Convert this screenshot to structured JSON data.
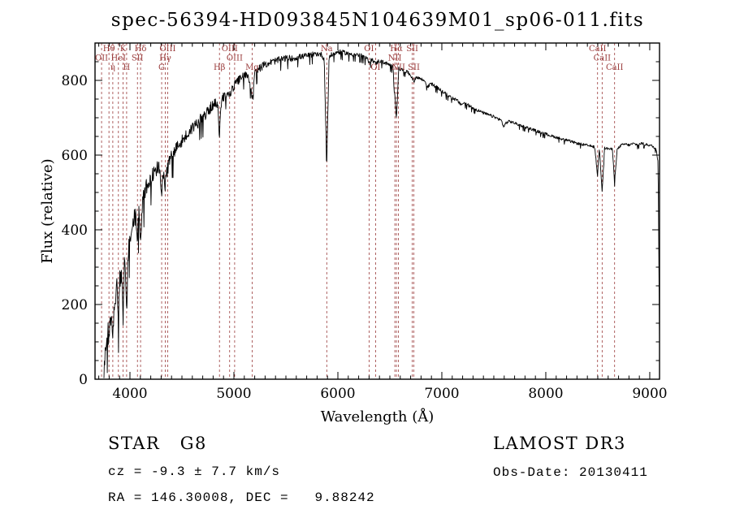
{
  "title": "spec-56394-HD093845N104639M01_sp06-011.fits",
  "footer": {
    "class_label": "STAR   G8",
    "survey": "LAMOST DR3",
    "cz": "cz = -9.3 ± 7.7 km/s",
    "obs_date": "Obs-Date: 20130411",
    "radec": "RA = 146.30008, DEC =   9.88242"
  },
  "chart_data": {
    "type": "line",
    "title": "spec-56394-HD093845N104639M01_sp06-011.fits",
    "xlabel": "Wavelength (Å)",
    "ylabel": "Flux (relative)",
    "xlim": [
      3664,
      9094
    ],
    "ylim": [
      0,
      900
    ],
    "x_ticks": [
      4000,
      5000,
      6000,
      7000,
      8000,
      9000
    ],
    "y_ticks": [
      0,
      200,
      400,
      600,
      800
    ],
    "x_minor_step": 100,
    "y_minor_step": 50,
    "grid": false,
    "line_color": "#000000",
    "marker_color": "#9a3b3b",
    "noise": {
      "base": 5.5,
      "blue_amp": 55,
      "decay": 950
    },
    "spectral_lines": [
      {
        "wavelength": 3727,
        "label": "OII",
        "row": 2
      },
      {
        "wavelength": 3798,
        "label": "Hθ",
        "row": 1
      },
      {
        "wavelength": 3835,
        "label": "η",
        "row": 3
      },
      {
        "wavelength": 3889,
        "label": "HeI",
        "row": 2
      },
      {
        "wavelength": 3933,
        "label": "K",
        "row": 1
      },
      {
        "wavelength": 3968,
        "label": "H",
        "row": 3
      },
      {
        "wavelength": 4072,
        "label": "SII",
        "row": 2
      },
      {
        "wavelength": 4102,
        "label": "Hδ",
        "row": 1
      },
      {
        "wavelength": 4305,
        "label": "G",
        "row": 3
      },
      {
        "wavelength": 4340,
        "label": "Hγ",
        "row": 2
      },
      {
        "wavelength": 4363,
        "label": "OIII",
        "row": 1
      },
      {
        "wavelength": 4861,
        "label": "Hβ",
        "row": 3
      },
      {
        "wavelength": 4959,
        "label": "OIII",
        "row": 1
      },
      {
        "wavelength": 5007,
        "label": "OIII",
        "row": 2
      },
      {
        "wavelength": 5175,
        "label": "Mg",
        "row": 3
      },
      {
        "wavelength": 5893,
        "label": "Na",
        "row": 1
      },
      {
        "wavelength": 6300,
        "label": "OI",
        "row": 1
      },
      {
        "wavelength": 6363,
        "label": "OI",
        "row": 3
      },
      {
        "wavelength": 6548,
        "label": "NII",
        "row": 2
      },
      {
        "wavelength": 6563,
        "label": "Hα",
        "row": 1
      },
      {
        "wavelength": 6583,
        "label": "NII",
        "row": 3
      },
      {
        "wavelength": 6716,
        "label": "SII",
        "row": 1
      },
      {
        "wavelength": 6731,
        "label": "SII",
        "row": 3
      },
      {
        "wavelength": 8498,
        "label": "CaII",
        "row": 1
      },
      {
        "wavelength": 8542,
        "label": "CaII",
        "row": 2
      },
      {
        "wavelength": 8662,
        "label": "CaII",
        "row": 3
      }
    ],
    "spectrum": [
      [
        3750,
        15
      ],
      [
        3762,
        70
      ],
      [
        3775,
        120
      ],
      [
        3788,
        150
      ],
      [
        3798,
        115
      ],
      [
        3810,
        170
      ],
      [
        3822,
        190
      ],
      [
        3835,
        130
      ],
      [
        3848,
        210
      ],
      [
        3862,
        230
      ],
      [
        3875,
        245
      ],
      [
        3889,
        175
      ],
      [
        3902,
        265
      ],
      [
        3915,
        285
      ],
      [
        3926,
        270
      ],
      [
        3933,
        125
      ],
      [
        3944,
        300
      ],
      [
        3956,
        310
      ],
      [
        3968,
        165
      ],
      [
        3980,
        340
      ],
      [
        3995,
        370
      ],
      [
        4010,
        405
      ],
      [
        4025,
        425
      ],
      [
        4040,
        445
      ],
      [
        4055,
        435
      ],
      [
        4072,
        390
      ],
      [
        4088,
        450
      ],
      [
        4102,
        355
      ],
      [
        4118,
        465
      ],
      [
        4135,
        495
      ],
      [
        4155,
        515
      ],
      [
        4175,
        530
      ],
      [
        4200,
        545
      ],
      [
        4225,
        555
      ],
      [
        4250,
        565
      ],
      [
        4275,
        572
      ],
      [
        4290,
        552
      ],
      [
        4305,
        495
      ],
      [
        4320,
        548
      ],
      [
        4340,
        515
      ],
      [
        4355,
        560
      ],
      [
        4375,
        580
      ],
      [
        4400,
        600
      ],
      [
        4430,
        615
      ],
      [
        4460,
        628
      ],
      [
        4490,
        638
      ],
      [
        4520,
        646
      ],
      [
        4550,
        656
      ],
      [
        4580,
        668
      ],
      [
        4610,
        678
      ],
      [
        4640,
        686
      ],
      [
        4670,
        694
      ],
      [
        4700,
        702
      ],
      [
        4730,
        712
      ],
      [
        4760,
        722
      ],
      [
        4790,
        734
      ],
      [
        4820,
        740
      ],
      [
        4845,
        728
      ],
      [
        4861,
        655
      ],
      [
        4880,
        748
      ],
      [
        4905,
        760
      ],
      [
        4930,
        768
      ],
      [
        4959,
        760
      ],
      [
        4985,
        778
      ],
      [
        5010,
        790
      ],
      [
        5040,
        800
      ],
      [
        5070,
        808
      ],
      [
        5100,
        814
      ],
      [
        5130,
        818
      ],
      [
        5155,
        795
      ],
      [
        5175,
        752
      ],
      [
        5200,
        820
      ],
      [
        5230,
        830
      ],
      [
        5260,
        836
      ],
      [
        5290,
        842
      ],
      [
        5320,
        846
      ],
      [
        5360,
        850
      ],
      [
        5400,
        853
      ],
      [
        5440,
        856
      ],
      [
        5480,
        859
      ],
      [
        5520,
        861
      ],
      [
        5560,
        859
      ],
      [
        5600,
        862
      ],
      [
        5640,
        864
      ],
      [
        5680,
        866
      ],
      [
        5720,
        868
      ],
      [
        5760,
        870
      ],
      [
        5800,
        872
      ],
      [
        5840,
        870
      ],
      [
        5868,
        858
      ],
      [
        5893,
        575
      ],
      [
        5915,
        864
      ],
      [
        5945,
        870
      ],
      [
        5975,
        874
      ],
      [
        6005,
        877
      ],
      [
        6040,
        876
      ],
      [
        6080,
        874
      ],
      [
        6120,
        872
      ],
      [
        6160,
        870
      ],
      [
        6200,
        868
      ],
      [
        6240,
        865
      ],
      [
        6270,
        861
      ],
      [
        6300,
        851
      ],
      [
        6330,
        857
      ],
      [
        6363,
        845
      ],
      [
        6395,
        853
      ],
      [
        6430,
        850
      ],
      [
        6465,
        846
      ],
      [
        6500,
        842
      ],
      [
        6530,
        837
      ],
      [
        6563,
        698
      ],
      [
        6585,
        832
      ],
      [
        6615,
        829
      ],
      [
        6650,
        825
      ],
      [
        6680,
        820
      ],
      [
        6716,
        808
      ],
      [
        6731,
        798
      ],
      [
        6760,
        810
      ],
      [
        6800,
        804
      ],
      [
        6840,
        798
      ],
      [
        6867,
        782
      ],
      [
        6890,
        793
      ],
      [
        6930,
        786
      ],
      [
        6970,
        778
      ],
      [
        7010,
        770
      ],
      [
        7050,
        762
      ],
      [
        7100,
        754
      ],
      [
        7150,
        746
      ],
      [
        7180,
        736
      ],
      [
        7220,
        740
      ],
      [
        7260,
        733
      ],
      [
        7300,
        727
      ],
      [
        7340,
        721
      ],
      [
        7380,
        716
      ],
      [
        7420,
        711
      ],
      [
        7460,
        707
      ],
      [
        7500,
        703
      ],
      [
        7540,
        698
      ],
      [
        7575,
        692
      ],
      [
        7594,
        676
      ],
      [
        7615,
        686
      ],
      [
        7650,
        691
      ],
      [
        7700,
        686
      ],
      [
        7750,
        681
      ],
      [
        7800,
        676
      ],
      [
        7850,
        671
      ],
      [
        7900,
        666
      ],
      [
        7950,
        661
      ],
      [
        8000,
        657
      ],
      [
        8050,
        652
      ],
      [
        8100,
        648
      ],
      [
        8150,
        644
      ],
      [
        8200,
        640
      ],
      [
        8250,
        636
      ],
      [
        8300,
        632
      ],
      [
        8350,
        629
      ],
      [
        8400,
        626
      ],
      [
        8440,
        624
      ],
      [
        8470,
        622
      ],
      [
        8498,
        545
      ],
      [
        8515,
        621
      ],
      [
        8542,
        505
      ],
      [
        8565,
        619
      ],
      [
        8590,
        618
      ],
      [
        8615,
        617
      ],
      [
        8640,
        616
      ],
      [
        8662,
        528
      ],
      [
        8685,
        614
      ],
      [
        8720,
        626
      ],
      [
        8760,
        630
      ],
      [
        8800,
        627
      ],
      [
        8840,
        631
      ],
      [
        8880,
        628
      ],
      [
        8920,
        632
      ],
      [
        8960,
        629
      ],
      [
        9000,
        627
      ],
      [
        9030,
        623
      ],
      [
        9060,
        617
      ],
      [
        9080,
        585
      ],
      [
        9094,
        95
      ]
    ]
  }
}
